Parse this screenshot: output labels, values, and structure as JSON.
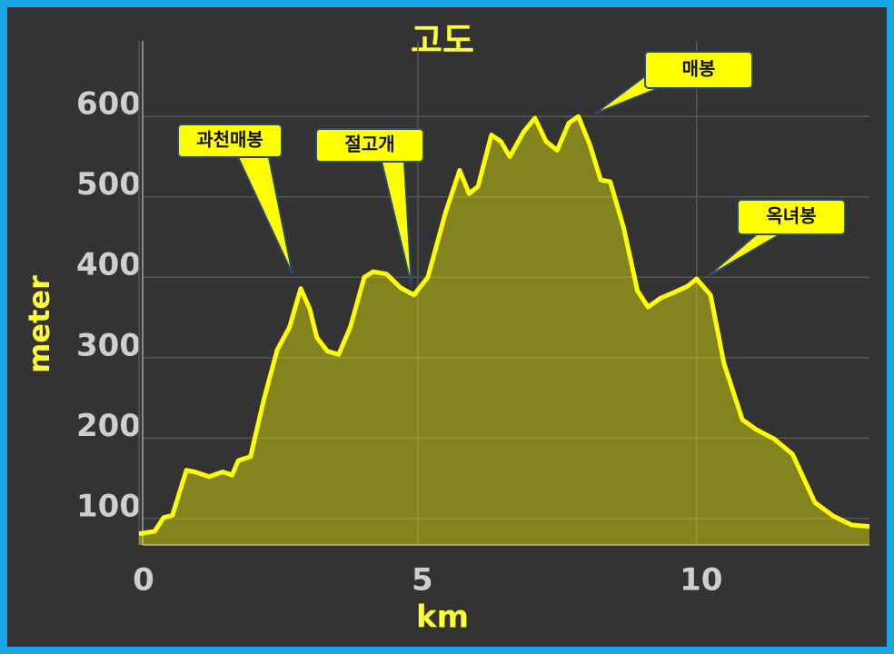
{
  "chart_data": {
    "type": "area",
    "title": "고도",
    "x_label": "km",
    "y_label": "meter",
    "x": [
      0,
      0.28,
      0.44,
      0.6,
      0.85,
      1.0,
      1.26,
      1.5,
      1.67,
      1.78,
      2.0,
      2.24,
      2.48,
      2.7,
      2.9,
      3.06,
      3.19,
      3.38,
      3.58,
      3.79,
      4.04,
      4.2,
      4.44,
      4.69,
      4.93,
      5.18,
      5.5,
      5.75,
      5.92,
      6.08,
      6.32,
      6.49,
      6.65,
      6.9,
      7.1,
      7.3,
      7.5,
      7.71,
      7.88,
      8.09,
      8.28,
      8.45,
      8.69,
      8.94,
      9.13,
      9.35,
      9.59,
      9.84,
      10.0,
      10.25,
      10.49,
      10.82,
      11.06,
      11.39,
      11.72,
      12.12,
      12.45,
      12.78,
      13.1
    ],
    "values": [
      81,
      84,
      101,
      104,
      160,
      158,
      152,
      158,
      154,
      172,
      177,
      248,
      310,
      338,
      386,
      361,
      325,
      308,
      304,
      338,
      400,
      407,
      404,
      387,
      378,
      400,
      481,
      533,
      504,
      513,
      577,
      569,
      550,
      581,
      598,
      569,
      558,
      592,
      600,
      564,
      521,
      519,
      462,
      383,
      363,
      374,
      381,
      389,
      398,
      378,
      293,
      223,
      211,
      199,
      180,
      120,
      103,
      92,
      90
    ],
    "color": "#ffff00",
    "xlim": [
      0,
      13.1
    ],
    "ylim": [
      67,
      694
    ],
    "xticks": [
      0,
      5,
      10
    ],
    "yticks": [
      100,
      200,
      300,
      400,
      500,
      600
    ],
    "grid": true,
    "annotations": [
      "과천매봉",
      "절고개",
      "매봉",
      "옥녀봉"
    ]
  }
}
